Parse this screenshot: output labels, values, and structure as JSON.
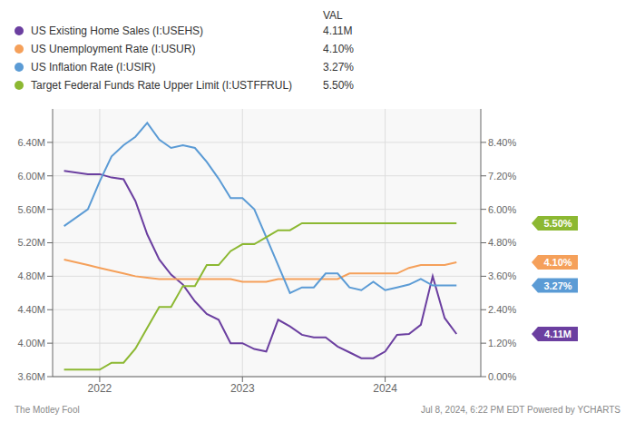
{
  "chart_data": {
    "type": "line",
    "legend": "top",
    "grid": true,
    "legend_header": "VAL",
    "x": [
      2021.75,
      2021.917,
      2022.0,
      2022.083,
      2022.167,
      2022.25,
      2022.333,
      2022.417,
      2022.5,
      2022.583,
      2022.667,
      2022.75,
      2022.833,
      2022.917,
      2023.0,
      2023.083,
      2023.167,
      2023.25,
      2023.333,
      2023.417,
      2023.5,
      2023.583,
      2023.667,
      2023.75,
      2023.833,
      2023.917,
      2024.0,
      2024.083,
      2024.167,
      2024.25,
      2024.333,
      2024.417,
      2024.5
    ],
    "xlim": [
      2021.67,
      2024.67
    ],
    "xticks": [
      2022,
      2023,
      2024
    ],
    "ylim": [
      3.6,
      6.8
    ],
    "yticks": [
      {
        "value": 3.6,
        "label": "3.60M"
      },
      {
        "value": 4.0,
        "label": "4.00M"
      },
      {
        "value": 4.4,
        "label": "4.40M"
      },
      {
        "value": 4.8,
        "label": "4.80M"
      },
      {
        "value": 5.2,
        "label": "5.20M"
      },
      {
        "value": 5.6,
        "label": "5.60M"
      },
      {
        "value": 6.0,
        "label": "6.00M"
      },
      {
        "value": 6.4,
        "label": "6.40M"
      }
    ],
    "y2lim": [
      0.0,
      9.6
    ],
    "y2ticks": [
      {
        "value": 0.0,
        "label": "0.00%"
      },
      {
        "value": 1.2,
        "label": "1.20%"
      },
      {
        "value": 2.4,
        "label": "2.40%"
      },
      {
        "value": 3.6,
        "label": "3.60%"
      },
      {
        "value": 4.8,
        "label": "4.80%"
      },
      {
        "value": 6.0,
        "label": "6.00%"
      },
      {
        "value": 7.2,
        "label": "7.20%"
      },
      {
        "value": 8.4,
        "label": "8.40%"
      }
    ],
    "series": [
      {
        "name": "US Existing Home Sales (I:USEHS)",
        "color": "#6B3FA0",
        "axis": "y",
        "legend_value": "4.11M",
        "values": [
          6.06,
          6.02,
          6.02,
          5.98,
          5.96,
          5.7,
          5.3,
          5.0,
          4.82,
          4.7,
          4.5,
          4.35,
          4.28,
          4.0,
          4.0,
          3.93,
          3.9,
          4.28,
          4.2,
          4.1,
          4.07,
          4.07,
          3.96,
          3.89,
          3.82,
          3.82,
          3.9,
          4.1,
          4.11,
          4.22,
          4.8,
          4.3,
          4.11
        ]
      },
      {
        "name": "US Unemployment Rate (I:USUR)",
        "color": "#F5A05A",
        "axis": "y2",
        "legend_value": "4.10%",
        "values": [
          4.2,
          4.0,
          3.9,
          3.8,
          3.7,
          3.6,
          3.55,
          3.5,
          3.5,
          3.5,
          3.5,
          3.5,
          3.5,
          3.5,
          3.4,
          3.4,
          3.4,
          3.5,
          3.5,
          3.5,
          3.5,
          3.5,
          3.5,
          3.7,
          3.7,
          3.7,
          3.7,
          3.7,
          3.9,
          4.0,
          4.0,
          4.0,
          4.1
        ]
      },
      {
        "name": "US Inflation Rate (I:USIR)",
        "color": "#5B9BD5",
        "axis": "y2",
        "legend_value": "3.27%",
        "values": [
          5.4,
          6.0,
          7.0,
          7.9,
          8.3,
          8.6,
          9.1,
          8.5,
          8.2,
          8.3,
          8.2,
          7.7,
          7.1,
          6.4,
          6.4,
          6.0,
          5.0,
          4.0,
          3.0,
          3.2,
          3.2,
          3.7,
          3.7,
          3.2,
          3.1,
          3.4,
          3.1,
          3.2,
          3.3,
          3.5,
          3.27,
          3.27,
          3.27
        ]
      },
      {
        "name": "Target Federal Funds Rate Upper Limit (I:USTFFRUL)",
        "color": "#8CB832",
        "axis": "y2",
        "legend_value": "5.50%",
        "values": [
          0.25,
          0.25,
          0.25,
          0.5,
          0.5,
          1.0,
          1.75,
          2.5,
          2.5,
          3.25,
          3.25,
          4.0,
          4.0,
          4.5,
          4.75,
          4.75,
          5.0,
          5.25,
          5.25,
          5.5,
          5.5,
          5.5,
          5.5,
          5.5,
          5.5,
          5.5,
          5.5,
          5.5,
          5.5,
          5.5,
          5.5,
          5.5,
          5.5
        ]
      }
    ],
    "annotations": [
      {
        "text": "4.11M",
        "y": 4.11,
        "axis": "y",
        "color": "#6B3FA0"
      },
      {
        "text": "5.50%",
        "y": 5.5,
        "axis": "y2",
        "color": "#8CB832"
      },
      {
        "text": "4.10%",
        "y": 4.1,
        "axis": "y2",
        "color": "#F5A05A"
      },
      {
        "text": "3.27%",
        "y": 3.27,
        "axis": "y2",
        "color": "#5B9BD5"
      }
    ],
    "footer": [
      "The Motley Fool",
      "Jul 8, 2024, 6:22 PM EDT  Powered by  YCHARTS"
    ]
  }
}
